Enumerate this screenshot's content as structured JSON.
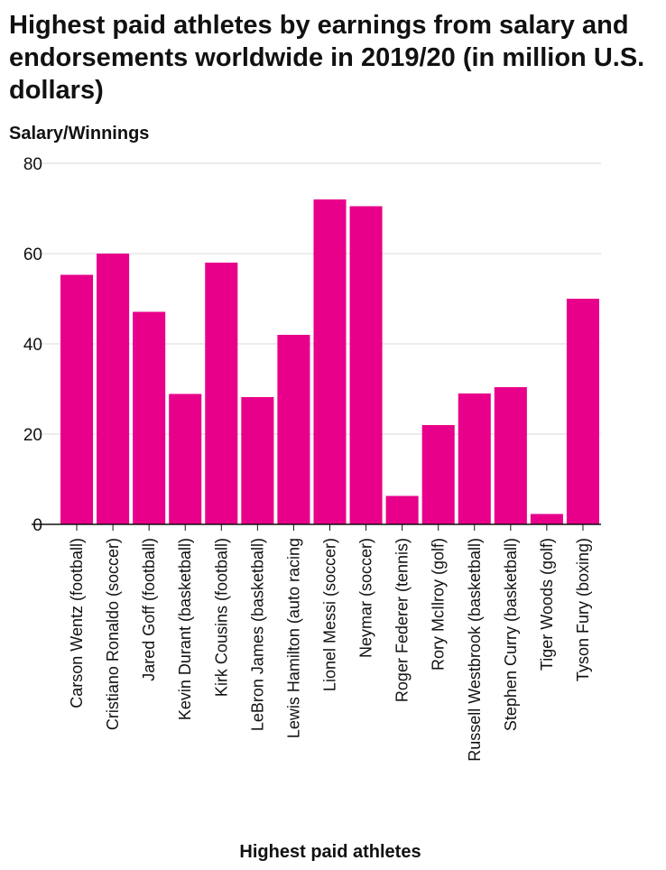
{
  "chart_data": {
    "type": "bar",
    "title": "Highest paid athletes by earnings from salary and endorsements worldwide in 2019/20 (in million U.S. dollars)",
    "xlabel": "Highest paid athletes",
    "ylabel": "Salary/Winnings",
    "ylim": [
      0,
      80
    ],
    "yticks": [
      0,
      20,
      40,
      60,
      80
    ],
    "grid": true,
    "bar_color": "#e8008a",
    "categories": [
      "Carson Wentz (football)",
      "Cristiano Ronaldo (soccer)",
      "Jared Goff (football)",
      "Kevin Durant (basketball)",
      "Kirk Cousins (football)",
      "LeBron James (basketball)",
      "Lewis Hamilton (auto racing",
      "Lionel Messi (soccer)",
      "Neymar (soccer)",
      "Roger Federer (tennis)",
      "Rory McIlroy (golf)",
      "Russell Westbrook (basketball)",
      "Stephen Curry (basketball)",
      "Tiger Woods (golf)",
      "Tyson Fury (boxing)"
    ],
    "values": [
      55.3,
      60,
      47.1,
      28.9,
      58,
      28.2,
      42,
      72,
      70.5,
      6.3,
      22,
      29,
      30.4,
      2.3,
      50
    ]
  }
}
